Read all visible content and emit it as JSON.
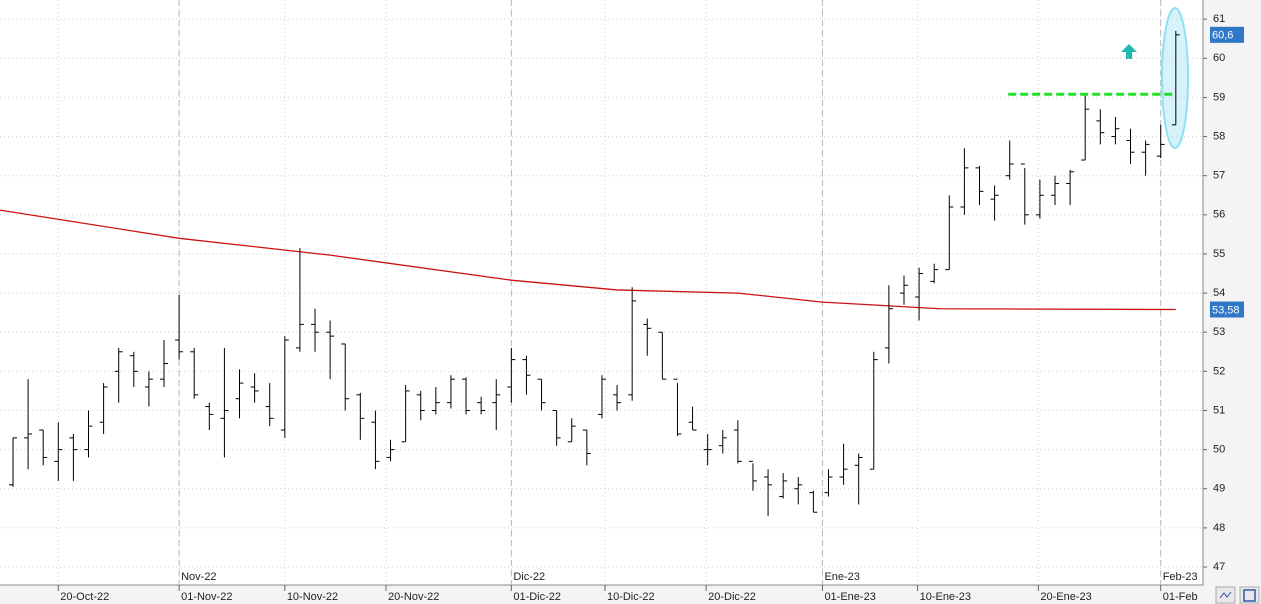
{
  "chart_data": {
    "type": "ohlc",
    "color": "#000000",
    "open": [
      49.1,
      50.3,
      50.5,
      49.7,
      50.3,
      50.0,
      50.7,
      52.0,
      52.4,
      51.6,
      51.8,
      52.8,
      52.5,
      51.1,
      50.8,
      51.3,
      51.6,
      51.1,
      50.5,
      52.6,
      53.2,
      53.0,
      52.7,
      51.4,
      50.7,
      49.8,
      50.2,
      51.4,
      51.0,
      51.2,
      51.8,
      51.2,
      51.2,
      51.6,
      52.3,
      51.8,
      51.0,
      50.2,
      50.5,
      50.9,
      51.4,
      51.4,
      53.2,
      53.0,
      51.8,
      50.7,
      50.0,
      50.1,
      50.5,
      49.7,
      49.3,
      48.8,
      49.0,
      48.9,
      48.9,
      49.3,
      49.6,
      49.5,
      52.6,
      54.0,
      53.9,
      54.3,
      54.6,
      56.2,
      57.2,
      56.4,
      57.0,
      57.3,
      56.0,
      56.5,
      56.8,
      57.4,
      58.4,
      58.0,
      57.9,
      57.6,
      57.5,
      58.3
    ],
    "high": [
      50.3,
      51.8,
      50.5,
      50.7,
      50.4,
      51.0,
      51.7,
      52.6,
      52.5,
      52.0,
      52.8,
      53.95,
      52.6,
      51.2,
      52.6,
      52.05,
      51.95,
      51.7,
      52.9,
      55.15,
      53.6,
      53.3,
      52.7,
      51.45,
      51.0,
      50.25,
      51.65,
      51.5,
      51.6,
      51.9,
      51.85,
      51.35,
      51.8,
      52.6,
      52.4,
      51.8,
      51.0,
      50.8,
      50.5,
      51.9,
      51.65,
      54.15,
      53.35,
      53.0,
      51.7,
      51.1,
      50.4,
      50.5,
      50.75,
      49.65,
      49.5,
      49.4,
      49.3,
      48.95,
      49.5,
      50.15,
      49.9,
      52.5,
      54.2,
      54.45,
      54.65,
      54.75,
      56.5,
      57.7,
      57.25,
      56.75,
      57.9,
      57.2,
      56.9,
      57.0,
      57.15,
      59.05,
      58.7,
      58.5,
      58.2,
      57.9,
      58.3,
      60.7
    ],
    "low": [
      49.05,
      49.5,
      49.6,
      49.2,
      49.2,
      49.8,
      50.4,
      51.2,
      51.6,
      51.1,
      51.6,
      52.3,
      51.3,
      50.5,
      49.8,
      50.8,
      51.2,
      50.6,
      50.3,
      52.5,
      52.5,
      51.8,
      51.0,
      50.25,
      49.5,
      49.7,
      50.2,
      50.75,
      50.9,
      51.05,
      50.9,
      50.9,
      50.5,
      51.2,
      51.4,
      51.0,
      50.1,
      50.2,
      49.6,
      50.8,
      51.0,
      51.25,
      52.4,
      51.8,
      50.35,
      50.5,
      49.6,
      49.9,
      49.65,
      48.95,
      48.3,
      48.75,
      48.6,
      48.4,
      48.8,
      49.1,
      48.6,
      49.5,
      52.2,
      53.7,
      53.3,
      54.25,
      54.6,
      56.0,
      56.25,
      55.85,
      56.9,
      55.75,
      55.9,
      56.25,
      56.25,
      57.4,
      57.8,
      57.8,
      57.3,
      57.0,
      57.45,
      58.3
    ],
    "close": [
      50.3,
      50.4,
      49.8,
      50.0,
      50.0,
      50.6,
      51.6,
      52.5,
      52.0,
      51.8,
      52.2,
      52.5,
      51.4,
      50.9,
      51.0,
      51.7,
      51.5,
      50.8,
      52.8,
      53.2,
      53.0,
      52.9,
      51.3,
      50.8,
      49.7,
      50.0,
      51.5,
      51.0,
      51.2,
      51.8,
      51.0,
      51.0,
      51.4,
      52.3,
      51.9,
      51.2,
      50.3,
      50.6,
      49.9,
      51.8,
      51.2,
      53.8,
      53.1,
      51.8,
      50.4,
      50.5,
      50.0,
      50.3,
      49.7,
      49.2,
      49.1,
      49.2,
      49.1,
      48.4,
      49.3,
      49.5,
      49.8,
      52.3,
      53.6,
      54.2,
      54.5,
      54.6,
      56.2,
      57.2,
      56.6,
      56.5,
      57.3,
      56.0,
      56.5,
      56.8,
      57.1,
      58.7,
      58.1,
      58.2,
      57.6,
      57.8,
      57.8,
      60.6
    ],
    "moving_average": {
      "color": "#cc1111",
      "x": [
        -0.86,
        11,
        21,
        33,
        40,
        48,
        53.6,
        61.4,
        77
      ],
      "values": [
        56.12,
        55.4,
        54.97,
        54.33,
        54.08,
        54.0,
        53.77,
        53.6,
        53.58
      ]
    },
    "level_line": {
      "color": "#22e02a",
      "value": 59.08,
      "x": [
        65.9,
        77
      ]
    },
    "last_labels": [
      {
        "value": 60.6,
        "label": "60,6"
      },
      {
        "value": 53.58,
        "label": "53,58"
      }
    ],
    "xlim": [
      -0.86,
      78.8
    ],
    "ylim": [
      46.54,
      61.49
    ],
    "yticks": [
      47,
      48,
      49,
      50,
      51,
      52,
      53,
      54,
      55,
      56,
      57,
      58,
      59,
      60,
      61
    ],
    "xticks": [
      {
        "value": 3,
        "label": "20-Oct-22"
      },
      {
        "value": 11,
        "label": "01-Nov-22"
      },
      {
        "value": 18,
        "label": "10-Nov-22"
      },
      {
        "value": 24.7,
        "label": "20-Nov-22"
      },
      {
        "value": 33,
        "label": "01-Dic-22"
      },
      {
        "value": 39.2,
        "label": "10-Dic-22"
      },
      {
        "value": 45.9,
        "label": "20-Dic-22"
      },
      {
        "value": 53.6,
        "label": "01-Ene-23"
      },
      {
        "value": 59.9,
        "label": "10-Ene-23"
      },
      {
        "value": 67.9,
        "label": "20-Ene-23"
      },
      {
        "value": 76,
        "label": "01-Feb"
      }
    ],
    "month_ticks": [
      {
        "value": 11,
        "label": "Nov-22"
      },
      {
        "value": 33,
        "label": "Dic-22"
      },
      {
        "value": 53.6,
        "label": "Ene-23"
      },
      {
        "value": 76,
        "label": "Feb-23"
      }
    ],
    "grid": true
  }
}
